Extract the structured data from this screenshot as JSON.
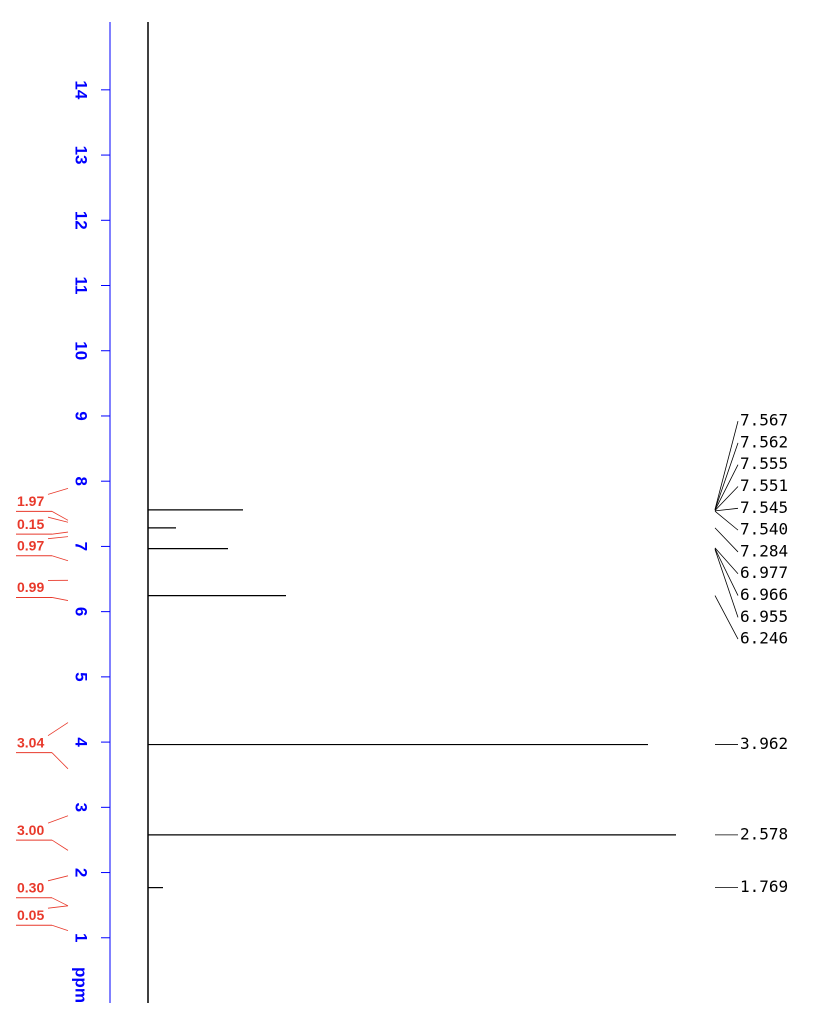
{
  "chart_data": {
    "type": "spectrum",
    "x_label": "ppm",
    "xlim": [
      0,
      15.04
    ],
    "xticks": [
      1,
      2,
      3,
      4,
      5,
      6,
      7,
      8,
      9,
      10,
      11,
      12,
      13,
      14
    ],
    "ylim": [
      0,
      530
    ],
    "color": "#000000",
    "axis_color": "#0000ff",
    "integral_color": "#e8392b",
    "peaks": {
      "x": [
        7.56,
        7.284,
        6.966,
        6.246,
        3.962,
        2.578,
        1.769
      ],
      "values": [
        95,
        28,
        80,
        138,
        500,
        528,
        15
      ]
    },
    "peak_labels": [
      7.567,
      7.562,
      7.555,
      7.551,
      7.545,
      {
        "value": 7.54,
        "label": "7.540"
      },
      7.284,
      6.977,
      6.966,
      6.955,
      6.246,
      3.962,
      2.578,
      1.769
    ],
    "integrals": {
      "values": [
        1.97,
        0.15,
        0.97,
        0.99,
        3.04,
        3.0,
        0.3,
        0.05
      ],
      "value_labels": [
        "1.97",
        "0.15",
        "0.97",
        "0.99",
        "3.04",
        "3.00",
        "0.30",
        "0.05"
      ],
      "ranges": [
        [
          7.89,
          7.4
        ],
        [
          7.37,
          7.22
        ],
        [
          7.15,
          6.78
        ],
        [
          6.48,
          6.17
        ],
        [
          4.3,
          3.59
        ],
        [
          2.87,
          2.34
        ],
        [
          1.95,
          1.49
        ],
        [
          1.49,
          1.11
        ]
      ]
    }
  }
}
